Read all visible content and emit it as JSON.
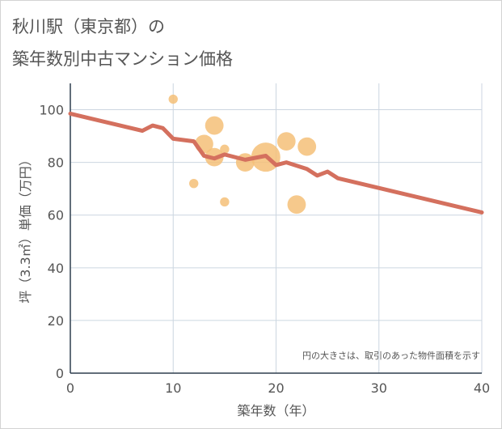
{
  "title_line1": "秋川駅（東京都）の",
  "title_line2": "築年数別中古マンション価格",
  "chart_data": {
    "type": "scatter",
    "xlabel": "築年数（年）",
    "ylabel": "坪（3.3㎡）単価（万円）",
    "xlim": [
      0,
      40
    ],
    "ylim": [
      0,
      110
    ],
    "xticks": [
      0,
      10,
      20,
      30,
      40
    ],
    "yticks": [
      0,
      20,
      40,
      60,
      80,
      100
    ],
    "grid": true,
    "annotation": "円の大きさは、取引のあった物件面積を示す",
    "colors": {
      "line": "#d4705e",
      "bubble": "#f5c078",
      "grid": "#ccd6e0"
    },
    "line_series": {
      "x": [
        0,
        7,
        8,
        9,
        10,
        12,
        13,
        14,
        15,
        17,
        19,
        20,
        21,
        23,
        24,
        25,
        26,
        40
      ],
      "y": [
        98.5,
        92,
        94,
        93,
        89,
        88,
        82.5,
        81.5,
        83,
        81,
        82.5,
        79,
        80,
        77.5,
        75,
        76.5,
        74,
        61
      ]
    },
    "bubble_series": [
      {
        "x": 10,
        "y": 104,
        "size": 1
      },
      {
        "x": 12,
        "y": 72,
        "size": 1
      },
      {
        "x": 13,
        "y": 87,
        "size": 4
      },
      {
        "x": 14,
        "y": 94,
        "size": 4
      },
      {
        "x": 14,
        "y": 82,
        "size": 4
      },
      {
        "x": 15,
        "y": 85,
        "size": 1
      },
      {
        "x": 15,
        "y": 65,
        "size": 1
      },
      {
        "x": 17,
        "y": 80,
        "size": 4
      },
      {
        "x": 19,
        "y": 82,
        "size": 10
      },
      {
        "x": 21,
        "y": 88,
        "size": 4
      },
      {
        "x": 22,
        "y": 64,
        "size": 4
      },
      {
        "x": 23,
        "y": 86,
        "size": 4
      }
    ]
  }
}
